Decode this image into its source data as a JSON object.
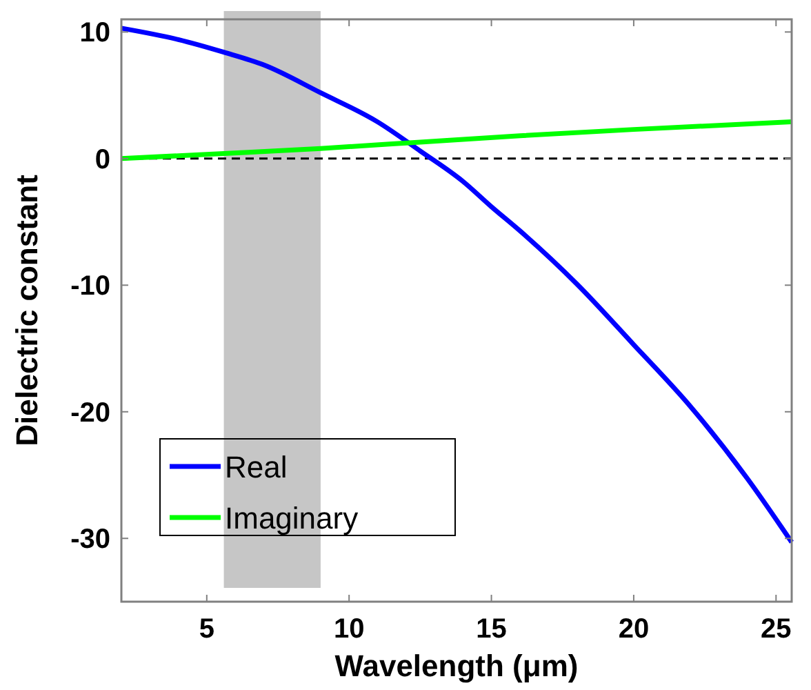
{
  "chart_data": {
    "type": "line",
    "xlabel": "Wavelength (μm)",
    "ylabel": "Dielectric constant",
    "xlim": [
      2,
      25.55
    ],
    "ylim": [
      -35,
      11
    ],
    "xticks": [
      5,
      10,
      15,
      20,
      25
    ],
    "yticks": [
      -30,
      -20,
      -10,
      0,
      10
    ],
    "grid": false,
    "legend": "bottom left",
    "line_style": "solid",
    "ref_lines": [
      {
        "axis": "y",
        "value": 0,
        "color": "#000000",
        "line_style": "dashed"
      }
    ],
    "bands": [
      {
        "axis": "x",
        "from": 5.6,
        "to": 9.0,
        "color": "#c6c6c6"
      }
    ],
    "series": [
      {
        "name": "Real",
        "color": "#0000ff",
        "x": [
          2,
          4,
          5.6,
          7,
          9,
          11,
          12.5,
          14,
          15,
          16,
          18,
          20,
          22,
          24,
          25.55
        ],
        "values": [
          10.3,
          9.4,
          8.4,
          7.4,
          5.2,
          2.9,
          0.6,
          -1.8,
          -3.8,
          -5.7,
          -9.9,
          -14.7,
          -19.6,
          -25.3,
          -30.3
        ]
      },
      {
        "name": "Imaginary",
        "color": "#00ff00",
        "x": [
          2,
          5.6,
          9,
          12.5,
          16,
          20,
          25.55
        ],
        "values": [
          0,
          0.4,
          0.8,
          1.3,
          1.8,
          2.3,
          2.9
        ]
      }
    ]
  }
}
